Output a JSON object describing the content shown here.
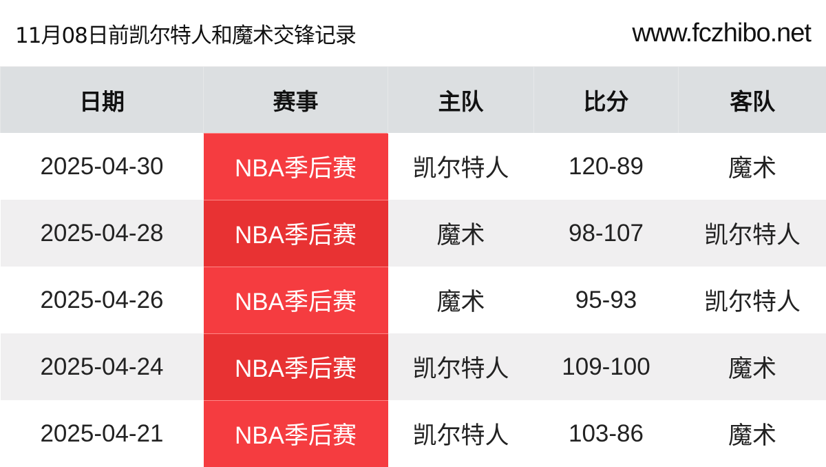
{
  "header": {
    "title": "11月08日前凯尔特人和魔术交锋记录",
    "site": "www.fczhibo.net"
  },
  "columns": [
    "日期",
    "赛事",
    "主队",
    "比分",
    "客队"
  ],
  "colors": {
    "event_bg": "#f53c40",
    "event_bg_alt": "#e83233",
    "header_bg": "#dcdfe1"
  },
  "rows": [
    [
      "2025-04-30",
      "NBA季后赛",
      "凯尔特人",
      "120-89",
      "魔术"
    ],
    [
      "2025-04-28",
      "NBA季后赛",
      "魔术",
      "98-107",
      "凯尔特人"
    ],
    [
      "2025-04-26",
      "NBA季后赛",
      "魔术",
      "95-93",
      "凯尔特人"
    ],
    [
      "2025-04-24",
      "NBA季后赛",
      "凯尔特人",
      "109-100",
      "魔术"
    ],
    [
      "2025-04-21",
      "NBA季后赛",
      "凯尔特人",
      "103-86",
      "魔术"
    ]
  ]
}
